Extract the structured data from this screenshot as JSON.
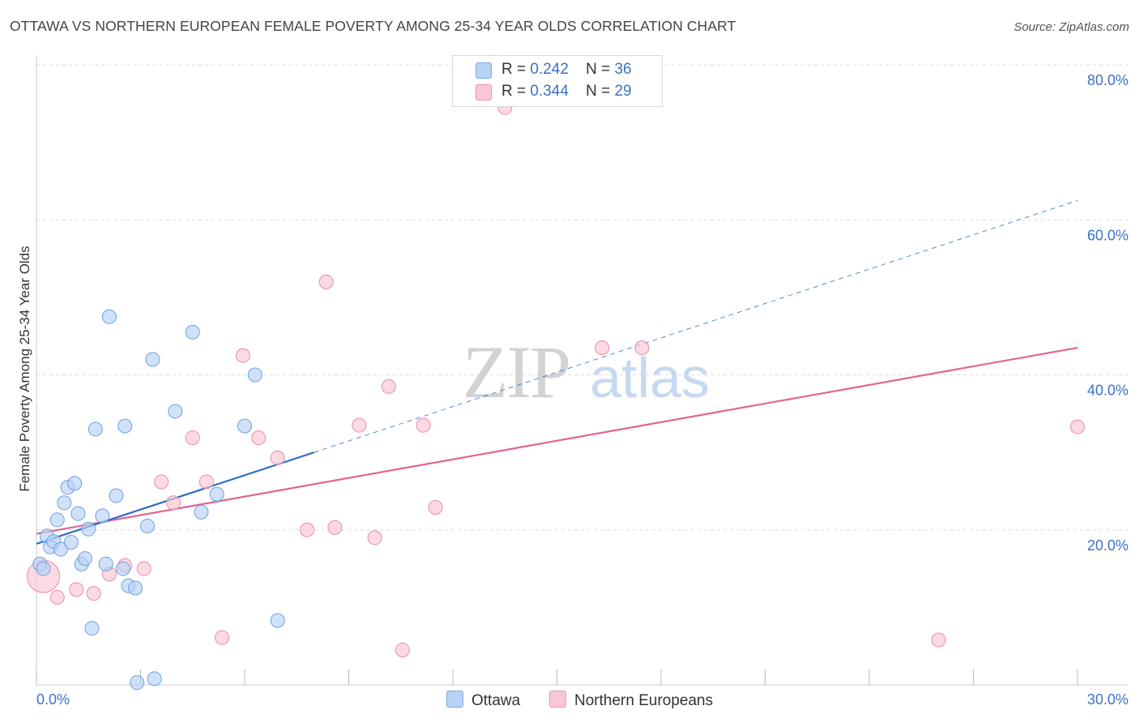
{
  "title": "OTTAWA VS NORTHERN EUROPEAN FEMALE POVERTY AMONG 25-34 YEAR OLDS CORRELATION CHART",
  "source": "Source: ZipAtlas.com",
  "watermark": {
    "zip": "ZIP",
    "atlas": "atlas"
  },
  "legend": {
    "r_label": "R =",
    "n_label": "N =",
    "rows": [
      {
        "r": "0.242",
        "n": "36",
        "color": "#b8d3f5",
        "border": "#7aa8e6"
      },
      {
        "r": "0.344",
        "n": "29",
        "color": "#f9c6d4",
        "border": "#ec94ad"
      }
    ]
  },
  "colors": {
    "ottawa_fill": "#b8d3f5",
    "ottawa_stroke": "#6f9fe0",
    "ottawa_line": "#2d6ccc",
    "northern_fill": "#f9c6d4",
    "northern_stroke": "#e98ba6",
    "northern_line": "#e0668f",
    "tick_label": "#3a72c6",
    "grid": "#dddddd"
  },
  "chart_data": {
    "type": "scatter",
    "title": "OTTAWA VS NORTHERN EUROPEAN FEMALE POVERTY AMONG 25-34 YEAR OLDS CORRELATION CHART",
    "xlabel": "",
    "ylabel": "Female Poverty Among 25-34 Year Olds",
    "xlim": [
      0,
      30
    ],
    "ylim": [
      0,
      80
    ],
    "x_tick_labels": [
      "0.0%",
      "30.0%"
    ],
    "y_ticks": [
      20,
      40,
      60,
      80
    ],
    "y_tick_labels": [
      "20.0%",
      "40.0%",
      "60.0%",
      "80.0%"
    ],
    "grid": true,
    "legend_position": "top-center",
    "series": [
      {
        "name": "Ottawa",
        "r": 0.242,
        "n": 36,
        "points": [
          [
            0.1,
            15.6
          ],
          [
            0.2,
            15.0
          ],
          [
            0.3,
            19.2
          ],
          [
            0.4,
            17.8
          ],
          [
            0.5,
            18.5
          ],
          [
            0.6,
            21.3
          ],
          [
            0.7,
            17.5
          ],
          [
            0.8,
            23.5
          ],
          [
            0.9,
            25.5
          ],
          [
            1.0,
            18.4
          ],
          [
            1.1,
            26.0
          ],
          [
            1.2,
            22.1
          ],
          [
            1.3,
            15.6
          ],
          [
            1.4,
            16.3
          ],
          [
            1.5,
            20.1
          ],
          [
            1.6,
            7.3
          ],
          [
            1.7,
            33.0
          ],
          [
            1.9,
            21.8
          ],
          [
            2.0,
            15.6
          ],
          [
            2.1,
            47.5
          ],
          [
            2.3,
            24.4
          ],
          [
            2.5,
            15.0
          ],
          [
            2.55,
            33.4
          ],
          [
            2.65,
            12.8
          ],
          [
            2.85,
            12.5
          ],
          [
            2.9,
            0.3
          ],
          [
            3.2,
            20.5
          ],
          [
            3.35,
            42.0
          ],
          [
            3.4,
            0.8
          ],
          [
            4.0,
            35.3
          ],
          [
            4.5,
            45.5
          ],
          [
            4.75,
            22.3
          ],
          [
            5.2,
            24.6
          ],
          [
            6.0,
            33.4
          ],
          [
            6.3,
            40.0
          ],
          [
            6.95,
            8.3
          ]
        ],
        "trend_solid": [
          [
            0.0,
            18.2
          ],
          [
            8.0,
            30.0
          ]
        ],
        "trend_dashed": [
          [
            8.0,
            30.0
          ],
          [
            30.0,
            62.5
          ]
        ]
      },
      {
        "name": "Northern Europeans",
        "r": 0.344,
        "n": 29,
        "points": [
          [
            0.2,
            14.0
          ],
          [
            0.6,
            11.3
          ],
          [
            1.15,
            12.3
          ],
          [
            1.65,
            11.8
          ],
          [
            2.1,
            14.3
          ],
          [
            2.55,
            15.4
          ],
          [
            3.1,
            15.0
          ],
          [
            3.6,
            26.2
          ],
          [
            3.95,
            23.5
          ],
          [
            4.5,
            31.9
          ],
          [
            4.9,
            26.2
          ],
          [
            5.35,
            6.1
          ],
          [
            5.95,
            42.5
          ],
          [
            6.4,
            31.9
          ],
          [
            6.95,
            29.3
          ],
          [
            7.8,
            20.0
          ],
          [
            8.35,
            52.0
          ],
          [
            8.6,
            20.3
          ],
          [
            9.3,
            33.5
          ],
          [
            9.75,
            19.0
          ],
          [
            10.15,
            38.5
          ],
          [
            10.55,
            4.5
          ],
          [
            11.15,
            33.5
          ],
          [
            11.5,
            22.9
          ],
          [
            13.5,
            74.5
          ],
          [
            16.3,
            43.5
          ],
          [
            17.45,
            43.5
          ],
          [
            26.0,
            5.8
          ],
          [
            30.0,
            33.3
          ]
        ],
        "trend_solid": [
          [
            0.0,
            19.5
          ],
          [
            30.0,
            43.5
          ]
        ]
      }
    ]
  },
  "bottom_legend": [
    {
      "label": "Ottawa"
    },
    {
      "label": "Northern Europeans"
    }
  ]
}
